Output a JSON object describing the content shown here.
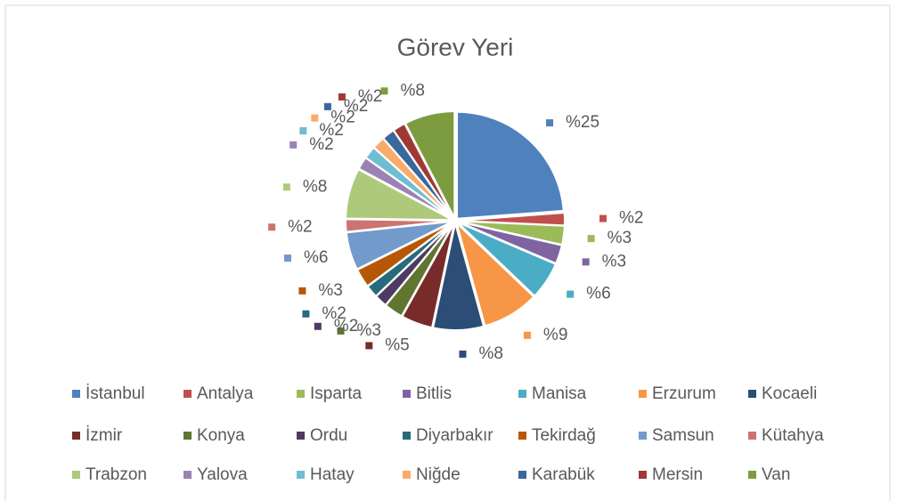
{
  "chart_data": {
    "type": "pie",
    "title": "Görev Yeri",
    "categories": [
      "İstanbul",
      "Antalya",
      "Isparta",
      "Bitlis",
      "Manisa",
      "Erzurum",
      "Kocaeli",
      "İzmir",
      "Konya",
      "Ordu",
      "Diyarbakır",
      "Tekirdağ",
      "Samsun",
      "Kütahya",
      "Trabzon",
      "Yalova",
      "Hatay",
      "Niğde",
      "Karabük",
      "Mersin",
      "Van"
    ],
    "values": [
      25,
      2,
      3,
      3,
      6,
      9,
      8,
      5,
      3,
      2,
      2,
      3,
      6,
      2,
      8,
      2,
      2,
      2,
      2,
      2,
      8
    ],
    "value_labels": [
      "%25",
      "%2",
      "%3",
      "%3",
      "%6",
      "%9",
      "%8",
      "%5",
      "%3",
      "%2",
      "%2",
      "%3",
      "%6",
      "%2",
      "%8",
      "%2",
      "%2",
      "%2",
      "%2",
      "%2",
      "%8"
    ],
    "colors": [
      "#4f81bd",
      "#c0504d",
      "#9bbb59",
      "#8064a2",
      "#4bacc6",
      "#f79646",
      "#2c4d75",
      "#772c2a",
      "#5f7530",
      "#4d3b62",
      "#276a7c",
      "#b65708",
      "#729aca",
      "#cd7371",
      "#afc97a",
      "#9983b5",
      "#6fbdd1",
      "#f9ab6b",
      "#3a679c",
      "#9e3936",
      "#7d9c40"
    ],
    "legend": "bottom"
  }
}
